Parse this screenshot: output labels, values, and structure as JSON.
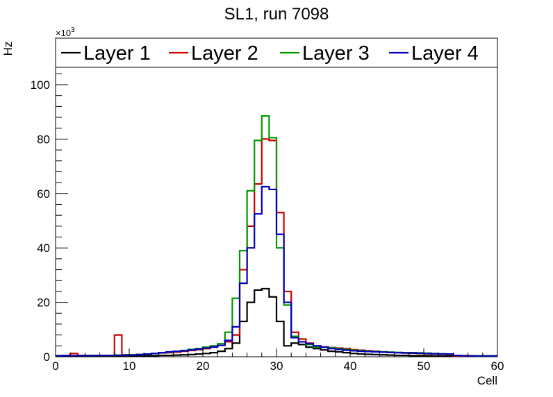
{
  "chart_data": {
    "type": "histogram",
    "title": "SL1, run 7098",
    "xlabel": "Cell",
    "ylabel": "Hz",
    "y_multiplier": "×10",
    "y_multiplier_exp": "3",
    "xlim": [
      0,
      60
    ],
    "ylim": [
      0,
      110
    ],
    "x_ticks": [
      0,
      10,
      20,
      30,
      40,
      50,
      60
    ],
    "y_ticks": [
      0,
      20,
      40,
      60,
      80,
      100
    ],
    "bins_start": 0,
    "bin_width": 1,
    "series": [
      {
        "name": "Layer 1",
        "color": "#000000",
        "values": [
          0.3,
          0.3,
          0.3,
          0.3,
          0.3,
          0.3,
          0.3,
          0.3,
          0.3,
          0.3,
          0.3,
          0.3,
          0.4,
          0.4,
          0.5,
          0.5,
          0.6,
          0.7,
          0.8,
          1.0,
          1.2,
          1.5,
          2.0,
          3.0,
          5.0,
          13.0,
          20.0,
          24.5,
          25.0,
          22.0,
          13.0,
          4.0,
          5.0,
          4.5,
          3.5,
          3.0,
          2.5,
          2.0,
          1.8,
          1.5,
          1.2,
          1.0,
          0.9,
          0.8,
          0.7,
          0.6,
          0.5,
          0.5,
          0.4,
          0.4,
          0.4,
          0.3,
          0.3,
          0.3,
          0.3,
          0.2,
          0.2,
          0.2,
          0.2,
          0.2
        ]
      },
      {
        "name": "Layer 2",
        "color": "#cc0000",
        "values": [
          0.3,
          0.5,
          1.2,
          0.5,
          0.5,
          0.5,
          0.5,
          0.5,
          8.0,
          0.7,
          0.7,
          0.8,
          1.0,
          1.2,
          1.4,
          1.5,
          1.7,
          2.0,
          2.3,
          2.6,
          3.0,
          3.5,
          4.2,
          5.5,
          8.0,
          32.0,
          48.0,
          63.5,
          80.0,
          79.5,
          53.0,
          24.0,
          9.0,
          6.5,
          5.0,
          4.0,
          3.6,
          3.4,
          3.2,
          3.0,
          2.6,
          2.4,
          2.2,
          2.0,
          1.8,
          1.6,
          1.5,
          1.4,
          1.3,
          1.2,
          1.1,
          1.0,
          1.0,
          0.9,
          0.3,
          0.3,
          0.3,
          0.3,
          0.3,
          0.3
        ]
      },
      {
        "name": "Layer 3",
        "color": "#009900",
        "values": [
          0.4,
          0.4,
          0.4,
          0.4,
          0.4,
          0.5,
          0.5,
          0.5,
          0.6,
          0.6,
          0.7,
          0.8,
          1.0,
          1.2,
          1.5,
          1.7,
          2.0,
          2.3,
          2.7,
          3.0,
          3.5,
          4.0,
          4.8,
          9.0,
          21.5,
          39.0,
          61.0,
          79.5,
          88.5,
          80.5,
          40.0,
          19.0,
          7.5,
          5.5,
          4.5,
          3.5,
          3.5,
          3.3,
          3.0,
          2.7,
          2.4,
          2.2,
          2.0,
          1.9,
          1.8,
          1.7,
          1.6,
          1.5,
          1.5,
          1.4,
          1.3,
          1.2,
          1.1,
          1.0,
          0.5,
          0.4,
          0.4,
          0.3,
          0.3,
          0.3
        ]
      },
      {
        "name": "Layer 4",
        "color": "#0000bb",
        "values": [
          0.4,
          0.4,
          0.4,
          0.4,
          0.4,
          0.4,
          0.5,
          0.5,
          0.5,
          0.6,
          0.6,
          0.8,
          1.0,
          1.2,
          1.5,
          1.8,
          2.0,
          2.2,
          2.5,
          2.8,
          3.2,
          3.6,
          4.2,
          6.0,
          11.0,
          27.0,
          40.0,
          52.5,
          62.5,
          61.5,
          45.0,
          20.0,
          7.0,
          5.5,
          4.8,
          4.0,
          3.5,
          3.0,
          2.7,
          2.4,
          2.2,
          2.0,
          1.9,
          1.8,
          1.7,
          1.6,
          1.5,
          1.4,
          1.4,
          1.3,
          1.2,
          1.1,
          1.0,
          1.0,
          0.5,
          0.4,
          0.3,
          0.3,
          0.3,
          0.3
        ]
      }
    ],
    "legend_position": "top"
  }
}
